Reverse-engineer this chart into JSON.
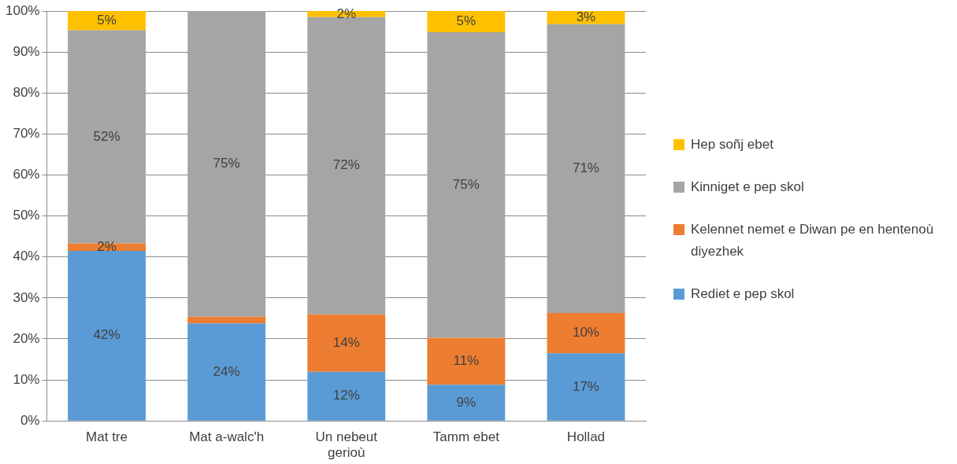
{
  "chart_data": {
    "type": "bar",
    "stacked": true,
    "categories": [
      "Mat tre",
      "Mat a-walc'h",
      "Un nebeut gerioù",
      "Tamm ebet",
      "Hollad"
    ],
    "series": [
      {
        "name": "Rediet e pep skol",
        "color": "#5b9bd5",
        "values": [
          41.5,
          23.8,
          12,
          8.8,
          16.5
        ],
        "value_labels": [
          "42%",
          "24%",
          "12%",
          "9%",
          "17%"
        ]
      },
      {
        "name": "Kelennet nemet e Diwan pe en hentenoù diyezhek",
        "color": "#ed7d31",
        "values": [
          1.8,
          1.6,
          14,
          11.5,
          9.8
        ],
        "value_labels": [
          "2%",
          null,
          "14%",
          "11%",
          "10%"
        ]
      },
      {
        "name": "Kinniget e pep skol",
        "color": "#a5a5a5",
        "values": [
          52,
          74.6,
          72.5,
          74.5,
          70.5
        ],
        "value_labels": [
          "52%",
          "75%",
          "72%",
          "75%",
          "71%"
        ]
      },
      {
        "name": "Hep soñj ebet",
        "color": "#ffc000",
        "values": [
          4.7,
          null,
          1.5,
          5.2,
          3.2
        ],
        "value_labels": [
          "5%",
          null,
          "2%",
          "5%",
          "3%"
        ]
      }
    ],
    "ylim": [
      0,
      100
    ],
    "yticks": [
      {
        "value": 0,
        "label": "0%"
      },
      {
        "value": 10,
        "label": "10%"
      },
      {
        "value": 20,
        "label": "20%"
      },
      {
        "value": 30,
        "label": "30%"
      },
      {
        "value": 40,
        "label": "40%"
      },
      {
        "value": 50,
        "label": "50%"
      },
      {
        "value": 60,
        "label": "60%"
      },
      {
        "value": 70,
        "label": "70%"
      },
      {
        "value": 80,
        "label": "80%"
      },
      {
        "value": 90,
        "label": "90%"
      },
      {
        "value": 100,
        "label": "100%"
      }
    ],
    "grid": "y",
    "legend": "right"
  }
}
